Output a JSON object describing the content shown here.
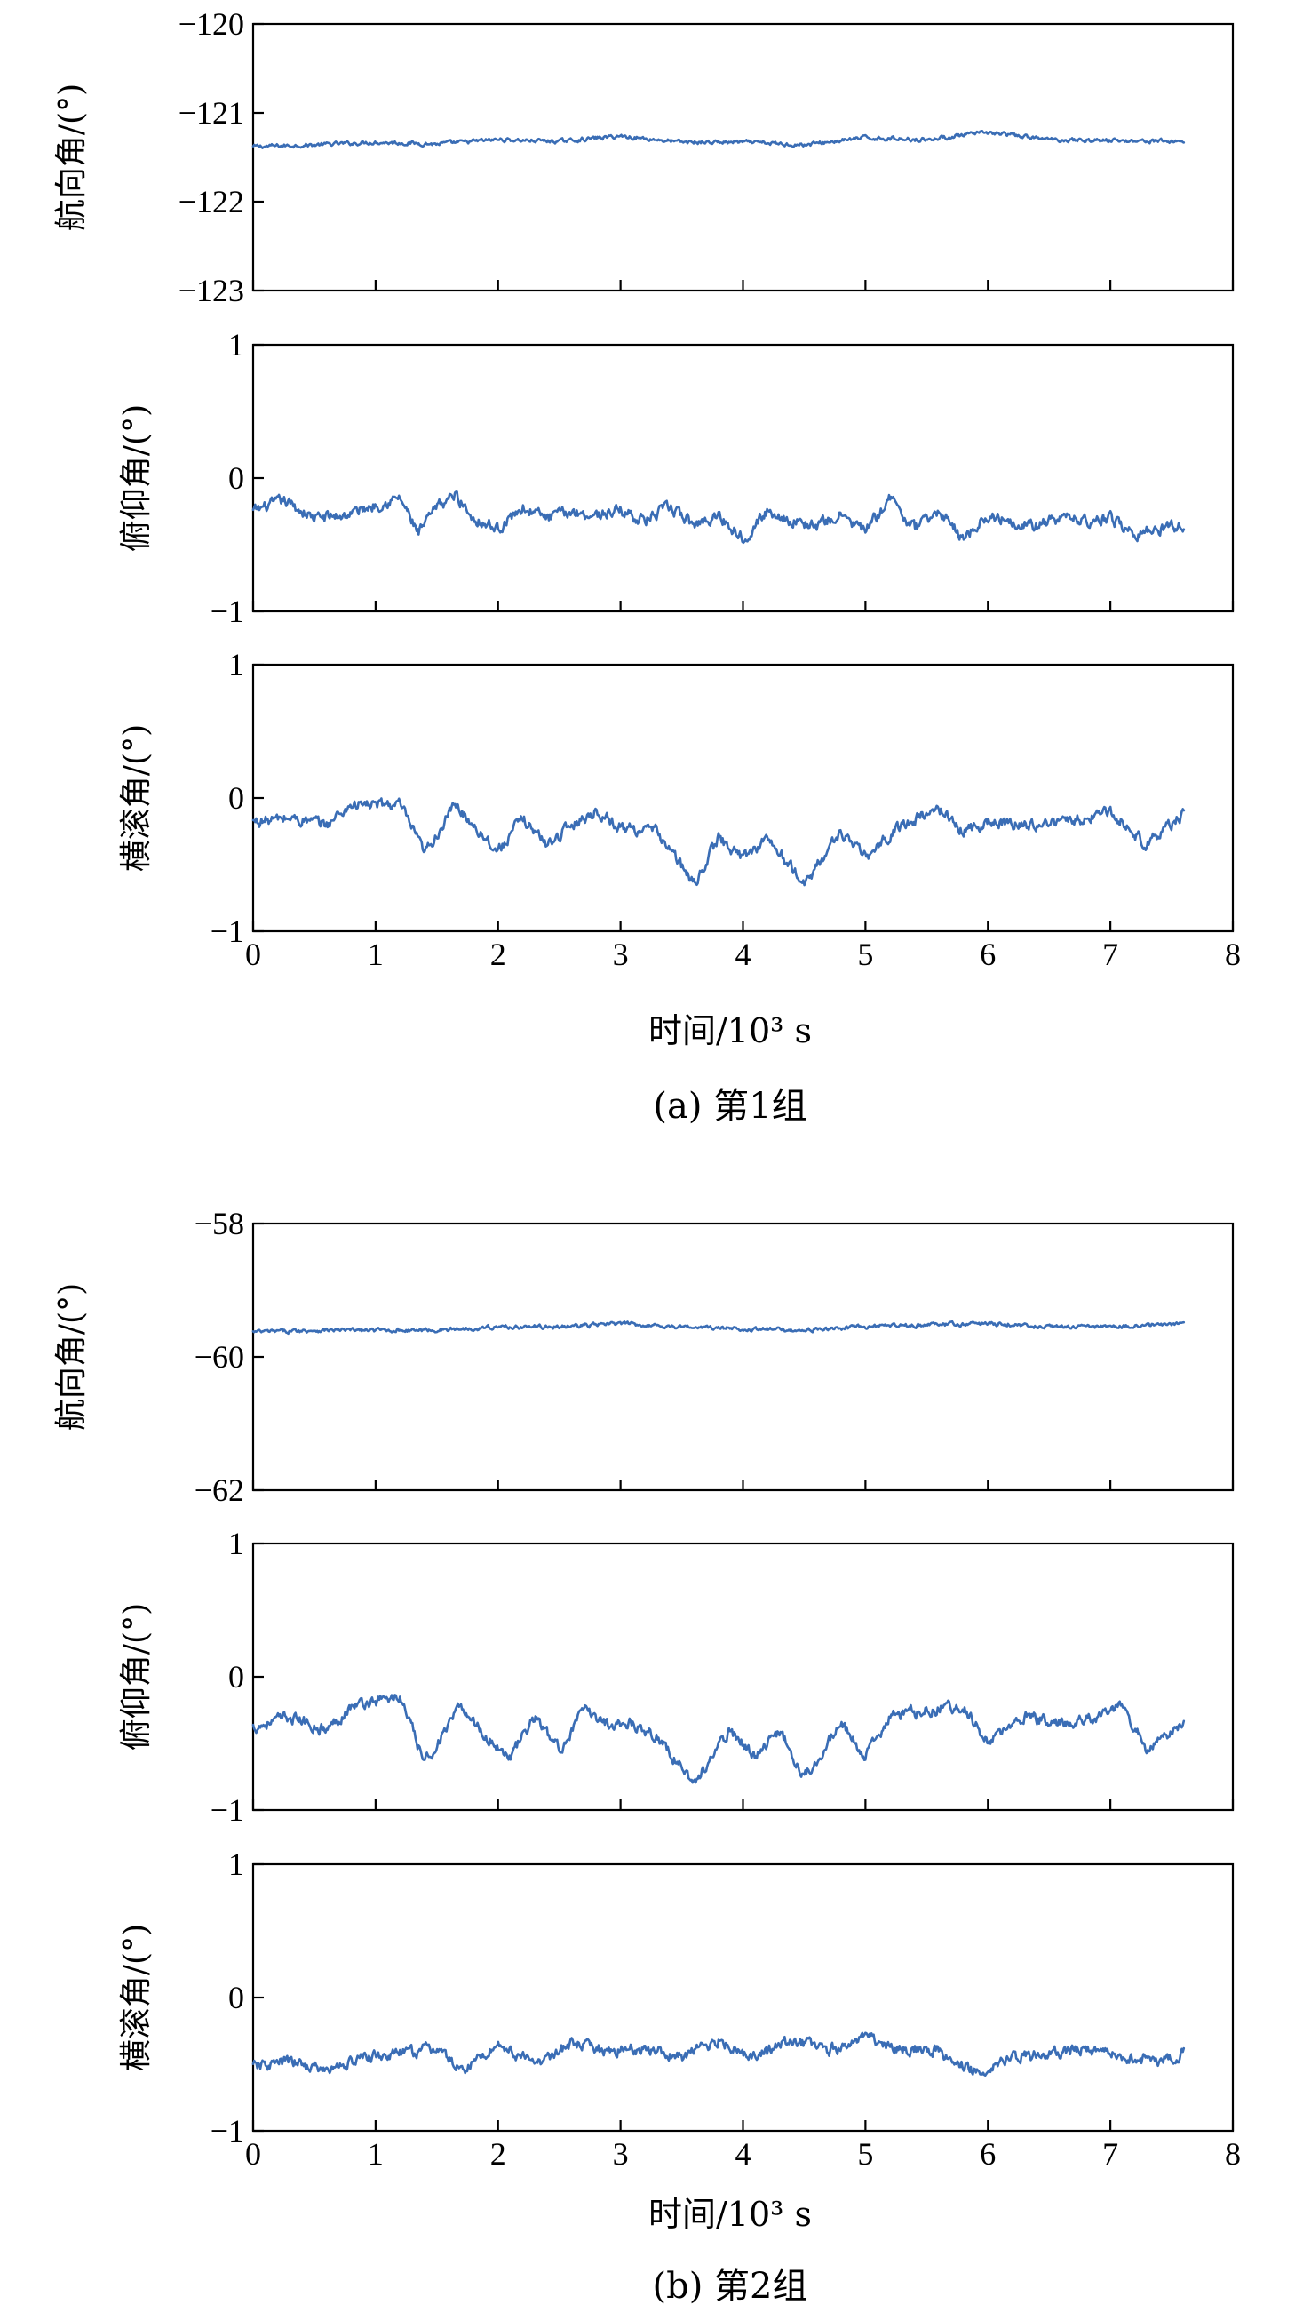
{
  "figure": {
    "line_color": "#3a6db5"
  },
  "chart_data": [
    {
      "type": "line",
      "group": "a",
      "subplot": "heading",
      "ylabel": "航向角/(°)",
      "xlabel": "",
      "xlim": [
        0,
        8
      ],
      "xticks": [
        "0",
        "1",
        "2",
        "3",
        "4",
        "5",
        "6",
        "7",
        "8"
      ],
      "ylim": [
        -123,
        -120
      ],
      "yticks": [
        "−120",
        "−121",
        "−122",
        "−123"
      ],
      "x": [
        0,
        0.5,
        1,
        1.5,
        2,
        2.5,
        3,
        3.5,
        4,
        4.5,
        5,
        5.5,
        6,
        6.5,
        7,
        7.6
      ],
      "series": [
        {
          "values": [
            -121.38,
            -121.36,
            -121.33,
            -121.35,
            -121.3,
            -121.32,
            -121.26,
            -121.33,
            -121.33,
            -121.36,
            -121.28,
            -121.3,
            -121.22,
            -121.3,
            -121.31,
            -121.32
          ]
        }
      ],
      "grid": false
    },
    {
      "type": "line",
      "group": "a",
      "subplot": "pitch",
      "ylabel": "俯仰角/(°)",
      "xlabel": "",
      "xlim": [
        0,
        8
      ],
      "xticks": [
        "0",
        "1",
        "2",
        "3",
        "4",
        "5",
        "6",
        "7",
        "8"
      ],
      "ylim": [
        -1,
        1
      ],
      "yticks": [
        "1",
        "0",
        "−1"
      ],
      "x": [
        0,
        0.25,
        0.5,
        0.75,
        1,
        1.2,
        1.35,
        1.5,
        1.65,
        1.8,
        2,
        2.2,
        2.4,
        2.6,
        2.8,
        3,
        3.2,
        3.4,
        3.6,
        3.8,
        4,
        4.2,
        4.4,
        4.6,
        4.8,
        5,
        5.2,
        5.4,
        5.6,
        5.8,
        6,
        6.2,
        6.4,
        6.6,
        6.8,
        7,
        7.2,
        7.4,
        7.6
      ],
      "series": [
        {
          "values": [
            -0.25,
            -0.17,
            -0.3,
            -0.28,
            -0.2,
            -0.15,
            -0.42,
            -0.22,
            -0.12,
            -0.3,
            -0.38,
            -0.22,
            -0.3,
            -0.25,
            -0.28,
            -0.24,
            -0.32,
            -0.22,
            -0.35,
            -0.28,
            -0.45,
            -0.25,
            -0.32,
            -0.36,
            -0.28,
            -0.4,
            -0.15,
            -0.38,
            -0.25,
            -0.45,
            -0.28,
            -0.32,
            -0.36,
            -0.3,
            -0.32,
            -0.3,
            -0.42,
            -0.38,
            -0.35
          ]
        }
      ],
      "grid": false
    },
    {
      "type": "line",
      "group": "a",
      "subplot": "roll",
      "ylabel": "横滚角/(°)",
      "xlabel": "时间/10³ s",
      "xlim": [
        0,
        8
      ],
      "xticks": [
        "0",
        "1",
        "2",
        "3",
        "4",
        "5",
        "6",
        "7",
        "8"
      ],
      "ylim": [
        -1,
        1
      ],
      "yticks": [
        "1",
        "0",
        "−1"
      ],
      "x": [
        0,
        0.3,
        0.6,
        0.8,
        1,
        1.2,
        1.4,
        1.65,
        1.8,
        2,
        2.2,
        2.4,
        2.6,
        2.8,
        3,
        3.3,
        3.6,
        3.8,
        4,
        4.2,
        4.5,
        4.8,
        5,
        5.3,
        5.6,
        5.8,
        6,
        6.3,
        6.6,
        6.8,
        7,
        7.3,
        7.6
      ],
      "series": [
        {
          "values": [
            -0.18,
            -0.15,
            -0.2,
            -0.05,
            -0.05,
            -0.05,
            -0.42,
            -0.05,
            -0.2,
            -0.4,
            -0.15,
            -0.35,
            -0.2,
            -0.1,
            -0.22,
            -0.25,
            -0.65,
            -0.3,
            -0.45,
            -0.3,
            -0.65,
            -0.25,
            -0.45,
            -0.2,
            -0.08,
            -0.25,
            -0.18,
            -0.2,
            -0.18,
            -0.15,
            -0.1,
            -0.35,
            -0.12
          ]
        }
      ],
      "grid": false
    },
    {
      "type": "line",
      "group": "b",
      "subplot": "heading",
      "ylabel": "航向角/(°)",
      "xlabel": "",
      "xlim": [
        0,
        8
      ],
      "xticks": [
        "0",
        "1",
        "2",
        "3",
        "4",
        "5",
        "6",
        "7",
        "8"
      ],
      "ylim": [
        -62,
        -58
      ],
      "yticks": [
        "−58",
        "−60",
        "−62"
      ],
      "x": [
        0,
        0.5,
        1,
        1.5,
        2,
        2.5,
        3,
        3.5,
        4,
        4.5,
        5,
        5.5,
        6,
        6.5,
        7,
        7.6
      ],
      "series": [
        {
          "values": [
            -59.63,
            -59.6,
            -59.6,
            -59.6,
            -59.55,
            -59.55,
            -59.5,
            -59.55,
            -59.58,
            -59.6,
            -59.55,
            -59.52,
            -59.5,
            -59.55,
            -59.55,
            -59.5
          ]
        }
      ],
      "grid": false
    },
    {
      "type": "line",
      "group": "b",
      "subplot": "pitch",
      "ylabel": "俯仰角/(°)",
      "xlabel": "",
      "xlim": [
        0,
        8
      ],
      "xticks": [
        "0",
        "1",
        "2",
        "3",
        "4",
        "5",
        "6",
        "7",
        "8"
      ],
      "ylim": [
        -1,
        1
      ],
      "yticks": [
        "1",
        "0",
        "−1"
      ],
      "x": [
        0,
        0.3,
        0.6,
        0.8,
        1,
        1.2,
        1.4,
        1.7,
        1.9,
        2.1,
        2.3,
        2.5,
        2.7,
        2.9,
        3.1,
        3.3,
        3.6,
        3.9,
        4.1,
        4.3,
        4.5,
        4.8,
        5.0,
        5.2,
        5.5,
        5.8,
        6.0,
        6.3,
        6.6,
        6.9,
        7.1,
        7.3,
        7.6
      ],
      "series": [
        {
          "values": [
            -0.38,
            -0.3,
            -0.4,
            -0.22,
            -0.18,
            -0.15,
            -0.65,
            -0.22,
            -0.45,
            -0.6,
            -0.3,
            -0.55,
            -0.25,
            -0.35,
            -0.35,
            -0.45,
            -0.8,
            -0.4,
            -0.6,
            -0.4,
            -0.75,
            -0.35,
            -0.6,
            -0.3,
            -0.25,
            -0.22,
            -0.5,
            -0.3,
            -0.35,
            -0.3,
            -0.22,
            -0.55,
            -0.35
          ]
        }
      ],
      "grid": false
    },
    {
      "type": "line",
      "group": "b",
      "subplot": "roll",
      "ylabel": "横滚角/(°)",
      "xlabel": "时间/10³ s",
      "xlim": [
        0,
        8
      ],
      "xticks": [
        "0",
        "1",
        "2",
        "3",
        "4",
        "5",
        "6",
        "7",
        "8"
      ],
      "ylim": [
        -1,
        1
      ],
      "yticks": [
        "1",
        "0",
        "−1"
      ],
      "x": [
        0,
        0.3,
        0.6,
        0.9,
        1.2,
        1.5,
        1.7,
        2,
        2.3,
        2.6,
        2.9,
        3.2,
        3.5,
        3.8,
        4.1,
        4.4,
        4.7,
        5,
        5.3,
        5.6,
        5.9,
        6.2,
        6.5,
        6.8,
        7.1,
        7.4,
        7.6
      ],
      "series": [
        {
          "values": [
            -0.52,
            -0.48,
            -0.55,
            -0.45,
            -0.42,
            -0.38,
            -0.55,
            -0.35,
            -0.5,
            -0.35,
            -0.4,
            -0.38,
            -0.45,
            -0.32,
            -0.45,
            -0.32,
            -0.4,
            -0.3,
            -0.38,
            -0.4,
            -0.55,
            -0.45,
            -0.42,
            -0.38,
            -0.45,
            -0.48,
            -0.42
          ]
        }
      ],
      "grid": false
    }
  ],
  "xlabels": {
    "a": "时间/10³ s",
    "b": "时间/10³ s"
  },
  "captions": {
    "a": "(a) 第1组",
    "b": "(b) 第2组"
  }
}
